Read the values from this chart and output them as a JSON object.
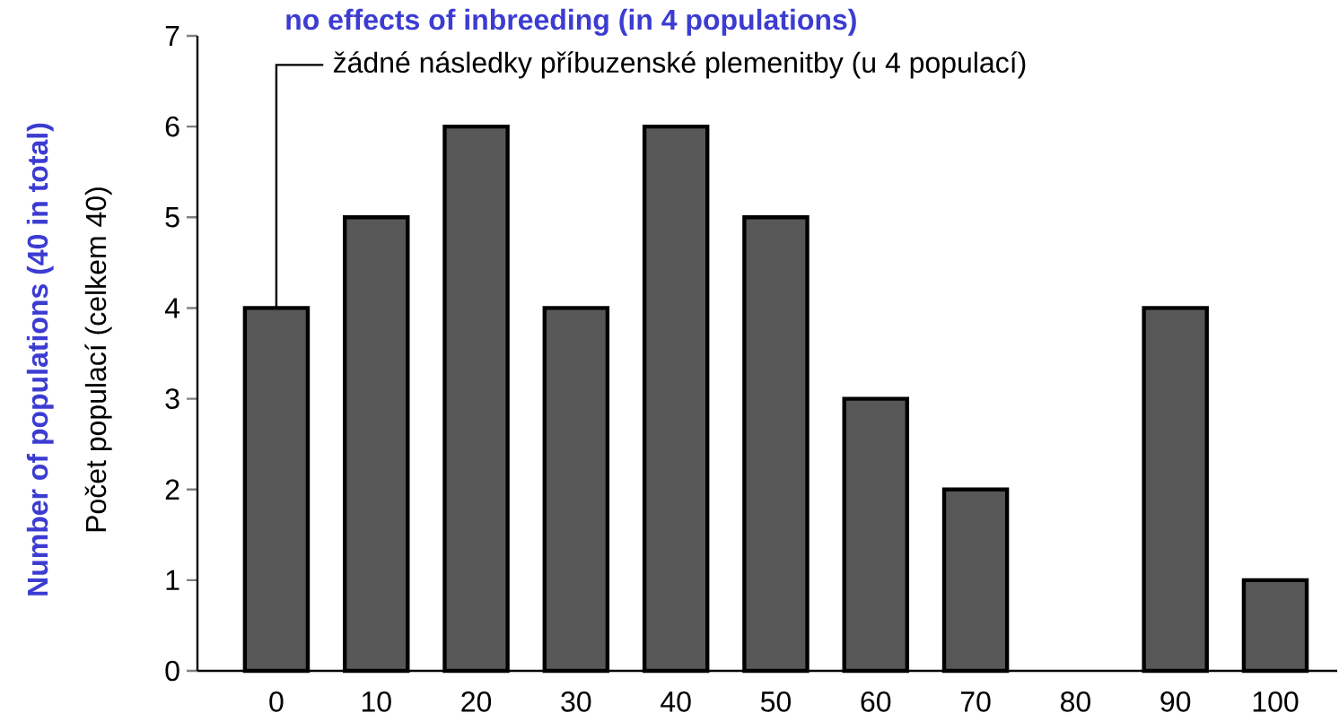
{
  "chart_data": {
    "type": "bar",
    "categories": [
      "0",
      "10",
      "20",
      "30",
      "40",
      "50",
      "60",
      "70",
      "80",
      "90",
      "100"
    ],
    "values": [
      4,
      5,
      6,
      4,
      6,
      5,
      3,
      2,
      0,
      4,
      1
    ],
    "color": "#575757",
    "ylabel": "Počet populací (celkem 40)",
    "ylim": [
      0,
      7
    ],
    "yticks": [
      0,
      1,
      2,
      3,
      4,
      5,
      6,
      7
    ],
    "annotations": [
      "Number of populations (40 in total)",
      "no effects of inbreeding (in 4 populations)",
      {
        "text": "žádné následky příbuzenské plemenitby (u 4 populací)",
        "x": "0",
        "y": 4
      }
    ]
  }
}
